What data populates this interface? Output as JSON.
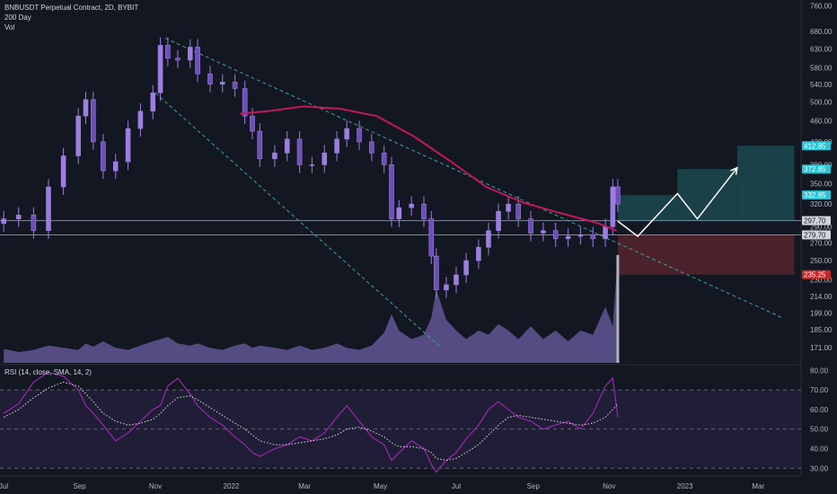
{
  "legend": {
    "symbol": "BNBUSDT Perpetual Contract, 2D, BYBIT",
    "ma": "200 Day",
    "vol": "Vol",
    "rsi": "RSI (14, close, SMA, 14, 2)"
  },
  "colors": {
    "background": "#131722",
    "candle": "#9c7ee0",
    "candle_dark": "#6c4fb8",
    "ma": "#c2185b",
    "volume": "#6e5fa6",
    "volume_last": "#b0b3bc",
    "rsi_line": "#9c27b0",
    "rsi_band": "#2a2145",
    "support_line": "#5b8de8",
    "trend_line": "#3aa39a",
    "projection": "#ffffff",
    "target_box": "#1e4f55",
    "stop_box": "#5a2630",
    "tag_cyan": "#26c6da",
    "tag_red": "#c62828",
    "tag_grey": "#d1d4dc"
  },
  "chart_data": [
    {
      "type": "candlestick",
      "title": "BNBUSDT Perpetual Contract, 2D, BYBIT",
      "x_ticks": [
        "Jul",
        "Sep",
        "Nov",
        "2022",
        "Mar",
        "May",
        "Jul",
        "Sep",
        "Nov",
        "2023",
        "Mar"
      ],
      "y_ticks": [
        171.0,
        185.0,
        199.0,
        214.0,
        230.0,
        250.0,
        270.0,
        290.0,
        320.0,
        350.0,
        380.0,
        420.0,
        460.0,
        500.0,
        540.0,
        580.0,
        630.0,
        680.0,
        760.0
      ],
      "y_tick_labels": [
        "171.00",
        "185.00",
        "199.00",
        "214.00",
        "230.00",
        "250.00",
        "270.00",
        "290.00",
        "320.00",
        "350.00",
        "380.00",
        "420.00",
        "460.00",
        "500.00",
        "540.00",
        "580.00",
        "630.00",
        "680.00",
        "760.00"
      ],
      "y_scale": "log",
      "ylim": [
        160,
        780
      ],
      "price_tags": [
        {
          "value": 412.85,
          "label": "412.85",
          "color": "cyan"
        },
        {
          "value": 372.85,
          "label": "372.85",
          "color": "cyan"
        },
        {
          "value": 332.85,
          "label": "332.85",
          "color": "cyan"
        },
        {
          "value": 297.7,
          "label": "297.70",
          "color": "grey"
        },
        {
          "value": 279.7,
          "label": "279.70",
          "color": "grey"
        },
        {
          "value": 235.25,
          "label": "235.25",
          "color": "red"
        }
      ],
      "series": [
        {
          "name": "BNBUSDT",
          "kind": "close",
          "points": [
            [
              "2021-07-02",
              300
            ],
            [
              "2021-07-14",
              305
            ],
            [
              "2021-07-26",
              285
            ],
            [
              "2021-08-07",
              345
            ],
            [
              "2021-08-19",
              395
            ],
            [
              "2021-08-31",
              470
            ],
            [
              "2021-09-06",
              505
            ],
            [
              "2021-09-12",
              420
            ],
            [
              "2021-09-20",
              370
            ],
            [
              "2021-09-30",
              385
            ],
            [
              "2021-10-10",
              445
            ],
            [
              "2021-10-20",
              480
            ],
            [
              "2021-10-30",
              520
            ],
            [
              "2021-11-05",
              640
            ],
            [
              "2021-11-11",
              605
            ],
            [
              "2021-11-19",
              600
            ],
            [
              "2021-11-29",
              635
            ],
            [
              "2021-12-05",
              565
            ],
            [
              "2021-12-15",
              540
            ],
            [
              "2021-12-25",
              545
            ],
            [
              "2022-01-04",
              530
            ],
            [
              "2022-01-12",
              470
            ],
            [
              "2022-01-18",
              440
            ],
            [
              "2022-01-24",
              390
            ],
            [
              "2022-02-05",
              400
            ],
            [
              "2022-02-15",
              425
            ],
            [
              "2022-02-25",
              380
            ],
            [
              "2022-03-07",
              380
            ],
            [
              "2022-03-17",
              400
            ],
            [
              "2022-03-27",
              425
            ],
            [
              "2022-04-04",
              445
            ],
            [
              "2022-04-14",
              420
            ],
            [
              "2022-04-24",
              400
            ],
            [
              "2022-05-04",
              380
            ],
            [
              "2022-05-10",
              300
            ],
            [
              "2022-05-16",
              315
            ],
            [
              "2022-05-26",
              320
            ],
            [
              "2022-06-05",
              300
            ],
            [
              "2022-06-11",
              255
            ],
            [
              "2022-06-15",
              220
            ],
            [
              "2022-06-23",
              225
            ],
            [
              "2022-07-01",
              235
            ],
            [
              "2022-07-09",
              250
            ],
            [
              "2022-07-19",
              265
            ],
            [
              "2022-07-27",
              285
            ],
            [
              "2022-08-04",
              310
            ],
            [
              "2022-08-12",
              320
            ],
            [
              "2022-08-20",
              300
            ],
            [
              "2022-08-30",
              282
            ],
            [
              "2022-09-09",
              285
            ],
            [
              "2022-09-19",
              275
            ],
            [
              "2022-09-29",
              278
            ],
            [
              "2022-10-09",
              280
            ],
            [
              "2022-10-19",
              275
            ],
            [
              "2022-10-29",
              290
            ],
            [
              "2022-11-04",
              345
            ],
            [
              "2022-11-08",
              320
            ]
          ]
        },
        {
          "name": "200 Day",
          "kind": "moving_average",
          "points": [
            [
              "2022-01-08",
              475
            ],
            [
              "2022-01-30",
              480
            ],
            [
              "2022-02-28",
              490
            ],
            [
              "2022-03-30",
              485
            ],
            [
              "2022-04-28",
              470
            ],
            [
              "2022-05-28",
              430
            ],
            [
              "2022-06-27",
              385
            ],
            [
              "2022-07-25",
              345
            ],
            [
              "2022-08-24",
              322
            ],
            [
              "2022-09-22",
              308
            ],
            [
              "2022-10-22",
              295
            ],
            [
              "2022-11-07",
              285
            ]
          ]
        }
      ],
      "annotations": {
        "horizontal_levels": [
          279.7,
          297.7
        ],
        "channel": [
          {
            "from": [
              "2021-11-09",
              660
            ],
            "to": [
              "2023-03-20",
              195
            ]
          },
          {
            "from": [
              "2021-11-01",
              520
            ],
            "to": [
              "2022-06-19",
              171
            ]
          }
        ],
        "projection_path": [
          [
            "2022-11-08",
            297
          ],
          [
            "2022-11-24",
            278
          ],
          [
            "2022-12-26",
            335
          ],
          [
            "2023-01-11",
            300
          ],
          [
            "2023-02-12",
            375
          ]
        ],
        "targets": [
          {
            "from": "2022-11-08",
            "to": "2022-12-26",
            "low": 297.7,
            "high": 332.85
          },
          {
            "from": "2022-12-26",
            "to": "2023-02-12",
            "low": 297.7,
            "high": 372.85
          },
          {
            "from": "2023-02-12",
            "to": "2023-03-30",
            "low": 297.7,
            "high": 412.85
          }
        ],
        "stops": [
          {
            "from": "2022-11-08",
            "to": "2023-03-30",
            "low": 235.25,
            "high": 279.7
          }
        ]
      }
    },
    {
      "type": "area",
      "name": "Vol",
      "relative_volume": [
        0.13,
        0.1,
        0.12,
        0.16,
        0.14,
        0.12,
        0.18,
        0.15,
        0.2,
        0.14,
        0.12,
        0.16,
        0.2,
        0.22,
        0.24,
        0.18,
        0.16,
        0.18,
        0.14,
        0.12,
        0.16,
        0.18,
        0.14,
        0.16,
        0.14,
        0.12,
        0.16,
        0.12,
        0.14,
        0.18,
        0.14,
        0.12,
        0.16,
        0.28,
        0.45,
        0.3,
        0.22,
        0.26,
        0.42,
        0.68,
        0.4,
        0.3,
        0.22,
        0.3,
        0.26,
        0.36,
        0.3,
        0.22,
        0.34,
        0.22,
        0.3,
        0.2,
        0.3,
        0.26,
        0.52,
        0.34,
        1.0
      ]
    },
    {
      "type": "line",
      "title": "RSI (14, close, SMA, 14, 2)",
      "y_ticks": [
        30.0,
        40.0,
        50.0,
        60.0,
        70.0,
        80.0
      ],
      "y_tick_labels": [
        "30.00",
        "40.00",
        "50.00",
        "60.00",
        "70.00",
        "80.00"
      ],
      "ylim": [
        26,
        82
      ],
      "bands": [
        30,
        50,
        70
      ],
      "series": [
        {
          "name": "RSI",
          "values": [
            58,
            63,
            74,
            79,
            77,
            70,
            62,
            58,
            52,
            44,
            48,
            54,
            60,
            62,
            72,
            76,
            68,
            62,
            56,
            52,
            46,
            42,
            38,
            36,
            40,
            42,
            46,
            44,
            48,
            56,
            62,
            54,
            46,
            42,
            34,
            38,
            44,
            40,
            32,
            28,
            34,
            38,
            45,
            52,
            60,
            64,
            60,
            56,
            54,
            50,
            52,
            54,
            50,
            58,
            72,
            76,
            56
          ]
        },
        {
          "name": "RSI-based MA",
          "values": [
            56,
            60,
            66,
            71,
            74,
            72,
            68,
            64,
            58,
            54,
            52,
            53,
            55,
            58,
            62,
            66,
            67,
            65,
            61,
            57,
            53,
            50,
            47,
            44,
            42,
            42,
            43,
            44,
            45,
            47,
            50,
            51,
            49,
            46,
            43,
            41,
            41,
            40,
            38,
            35,
            34,
            35,
            38,
            42,
            47,
            52,
            56,
            57,
            56,
            55,
            54,
            53,
            52,
            53,
            56,
            60,
            63
          ]
        }
      ]
    }
  ]
}
